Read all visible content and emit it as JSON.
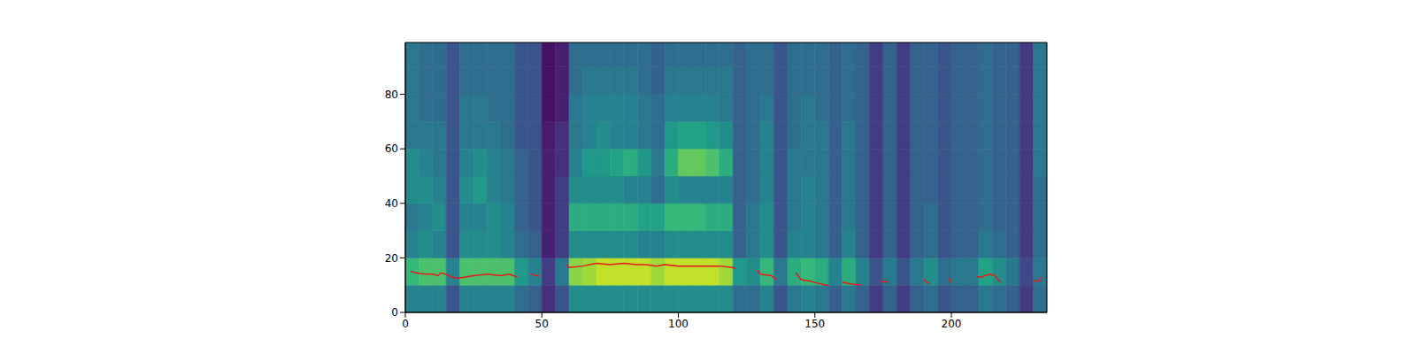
{
  "chart_data": {
    "type": "heatmap",
    "xlim": [
      0,
      235
    ],
    "ylim": [
      0,
      99
    ],
    "xticks": [
      0,
      50,
      100,
      150,
      200
    ],
    "yticks": [
      0,
      20,
      40,
      60,
      80
    ],
    "heatmap": {
      "color_range": [
        0,
        1
      ],
      "x_edges": [
        0,
        5,
        10,
        15,
        20,
        25,
        30,
        35,
        40,
        45,
        50,
        55,
        60,
        65,
        70,
        75,
        80,
        85,
        90,
        95,
        100,
        105,
        110,
        115,
        120,
        125,
        130,
        135,
        140,
        145,
        150,
        155,
        160,
        165,
        170,
        175,
        180,
        185,
        190,
        195,
        200,
        205,
        210,
        215,
        220,
        225,
        230,
        235
      ],
      "y_edges": [
        0,
        10,
        20,
        30,
        40,
        50,
        60,
        70,
        80,
        90,
        99
      ],
      "values": [
        [
          0.5,
          0.75,
          0.5,
          0.45,
          0.55,
          0.55,
          0.45,
          0.45,
          0.45,
          0.45
        ],
        [
          0.5,
          0.8,
          0.55,
          0.5,
          0.55,
          0.5,
          0.45,
          0.4,
          0.4,
          0.4
        ],
        [
          0.5,
          0.8,
          0.5,
          0.55,
          0.5,
          0.45,
          0.45,
          0.4,
          0.4,
          0.4
        ],
        [
          0.3,
          0.5,
          0.3,
          0.3,
          0.3,
          0.3,
          0.3,
          0.3,
          0.3,
          0.3
        ],
        [
          0.5,
          0.8,
          0.55,
          0.5,
          0.55,
          0.5,
          0.45,
          0.45,
          0.4,
          0.4
        ],
        [
          0.5,
          0.8,
          0.55,
          0.5,
          0.6,
          0.55,
          0.45,
          0.45,
          0.4,
          0.4
        ],
        [
          0.5,
          0.8,
          0.55,
          0.55,
          0.5,
          0.5,
          0.45,
          0.4,
          0.4,
          0.4
        ],
        [
          0.5,
          0.8,
          0.5,
          0.5,
          0.45,
          0.45,
          0.4,
          0.4,
          0.4,
          0.4
        ],
        [
          0.4,
          0.6,
          0.4,
          0.35,
          0.35,
          0.35,
          0.3,
          0.3,
          0.3,
          0.3
        ],
        [
          0.35,
          0.5,
          0.35,
          0.3,
          0.3,
          0.3,
          0.3,
          0.3,
          0.3,
          0.3
        ],
        [
          0.15,
          0.2,
          0.1,
          0.1,
          0.1,
          0.1,
          0.08,
          0.05,
          0.05,
          0.05
        ],
        [
          0.3,
          0.45,
          0.2,
          0.2,
          0.2,
          0.15,
          0.15,
          0.1,
          0.1,
          0.1
        ],
        [
          0.55,
          0.9,
          0.55,
          0.7,
          0.55,
          0.5,
          0.45,
          0.45,
          0.4,
          0.4
        ],
        [
          0.55,
          0.92,
          0.55,
          0.7,
          0.55,
          0.6,
          0.5,
          0.5,
          0.45,
          0.4
        ],
        [
          0.55,
          0.95,
          0.55,
          0.7,
          0.55,
          0.6,
          0.55,
          0.5,
          0.45,
          0.4
        ],
        [
          0.55,
          0.95,
          0.55,
          0.7,
          0.55,
          0.65,
          0.5,
          0.5,
          0.45,
          0.4
        ],
        [
          0.55,
          0.95,
          0.55,
          0.7,
          0.5,
          0.7,
          0.5,
          0.5,
          0.45,
          0.4
        ],
        [
          0.55,
          0.95,
          0.5,
          0.65,
          0.5,
          0.6,
          0.45,
          0.45,
          0.4,
          0.4
        ],
        [
          0.55,
          0.92,
          0.5,
          0.65,
          0.4,
          0.45,
          0.4,
          0.4,
          0.35,
          0.35
        ],
        [
          0.55,
          0.95,
          0.55,
          0.75,
          0.55,
          0.7,
          0.6,
          0.5,
          0.45,
          0.4
        ],
        [
          0.55,
          0.95,
          0.55,
          0.75,
          0.5,
          0.85,
          0.65,
          0.5,
          0.45,
          0.4
        ],
        [
          0.55,
          0.95,
          0.55,
          0.75,
          0.5,
          0.85,
          0.65,
          0.5,
          0.45,
          0.4
        ],
        [
          0.55,
          0.95,
          0.55,
          0.7,
          0.5,
          0.8,
          0.6,
          0.5,
          0.45,
          0.4
        ],
        [
          0.55,
          0.92,
          0.55,
          0.7,
          0.5,
          0.7,
          0.55,
          0.45,
          0.45,
          0.4
        ],
        [
          0.4,
          0.6,
          0.35,
          0.35,
          0.35,
          0.35,
          0.35,
          0.35,
          0.35,
          0.35
        ],
        [
          0.4,
          0.55,
          0.45,
          0.45,
          0.4,
          0.4,
          0.4,
          0.4,
          0.4,
          0.4
        ],
        [
          0.5,
          0.75,
          0.55,
          0.55,
          0.5,
          0.5,
          0.5,
          0.45,
          0.4,
          0.4
        ],
        [
          0.3,
          0.45,
          0.3,
          0.3,
          0.3,
          0.3,
          0.3,
          0.3,
          0.3,
          0.3
        ],
        [
          0.45,
          0.7,
          0.5,
          0.45,
          0.45,
          0.45,
          0.4,
          0.4,
          0.4,
          0.4
        ],
        [
          0.5,
          0.75,
          0.5,
          0.5,
          0.5,
          0.45,
          0.45,
          0.45,
          0.4,
          0.4
        ],
        [
          0.45,
          0.7,
          0.45,
          0.45,
          0.45,
          0.45,
          0.45,
          0.4,
          0.4,
          0.4
        ],
        [
          0.35,
          0.5,
          0.35,
          0.35,
          0.35,
          0.35,
          0.35,
          0.35,
          0.35,
          0.35
        ],
        [
          0.45,
          0.7,
          0.5,
          0.45,
          0.45,
          0.45,
          0.45,
          0.4,
          0.4,
          0.4
        ],
        [
          0.35,
          0.5,
          0.35,
          0.35,
          0.35,
          0.35,
          0.35,
          0.35,
          0.35,
          0.35
        ],
        [
          0.2,
          0.3,
          0.2,
          0.2,
          0.2,
          0.2,
          0.2,
          0.2,
          0.2,
          0.2
        ],
        [
          0.35,
          0.45,
          0.35,
          0.35,
          0.35,
          0.35,
          0.35,
          0.35,
          0.35,
          0.35
        ],
        [
          0.2,
          0.3,
          0.2,
          0.2,
          0.2,
          0.2,
          0.2,
          0.2,
          0.2,
          0.2
        ],
        [
          0.35,
          0.45,
          0.35,
          0.35,
          0.35,
          0.35,
          0.35,
          0.35,
          0.35,
          0.35
        ],
        [
          0.4,
          0.55,
          0.4,
          0.4,
          0.35,
          0.35,
          0.35,
          0.35,
          0.35,
          0.35
        ],
        [
          0.3,
          0.4,
          0.3,
          0.3,
          0.3,
          0.3,
          0.3,
          0.3,
          0.3,
          0.3
        ],
        [
          0.35,
          0.45,
          0.35,
          0.35,
          0.35,
          0.35,
          0.35,
          0.35,
          0.35,
          0.35
        ],
        [
          0.35,
          0.45,
          0.35,
          0.35,
          0.35,
          0.35,
          0.35,
          0.35,
          0.35,
          0.35
        ],
        [
          0.45,
          0.65,
          0.45,
          0.4,
          0.4,
          0.4,
          0.4,
          0.4,
          0.4,
          0.4
        ],
        [
          0.4,
          0.55,
          0.4,
          0.35,
          0.35,
          0.35,
          0.35,
          0.35,
          0.35,
          0.35
        ],
        [
          0.35,
          0.45,
          0.35,
          0.35,
          0.35,
          0.35,
          0.35,
          0.35,
          0.35,
          0.35
        ],
        [
          0.2,
          0.25,
          0.2,
          0.2,
          0.2,
          0.2,
          0.2,
          0.2,
          0.2,
          0.2
        ],
        [
          0.4,
          0.45,
          0.4,
          0.4,
          0.4,
          0.45,
          0.45,
          0.45,
          0.45,
          0.45
        ]
      ]
    },
    "series": [
      {
        "type": "line",
        "color": "#e41a1c",
        "x": [
          2,
          5,
          8,
          10,
          12,
          13,
          15,
          17,
          19,
          22,
          25,
          30,
          35,
          38,
          41,
          44,
          46,
          49,
          54,
          59,
          60,
          65,
          70,
          75,
          80,
          85,
          88,
          92,
          95,
          100,
          105,
          110,
          115,
          120,
          121,
          125,
          129,
          130,
          134,
          136,
          140,
          143,
          145,
          148,
          150,
          154,
          155,
          158,
          160,
          163,
          167,
          171,
          174,
          177,
          183,
          190,
          191,
          192,
          196,
          199,
          200,
          205,
          209,
          211,
          214,
          216,
          218,
          224,
          230,
          232,
          233
        ],
        "values": [
          15,
          14.3,
          14,
          14,
          13.5,
          14.5,
          14,
          13,
          12.5,
          13,
          13.5,
          14,
          13.5,
          14,
          13,
          null,
          14,
          13.3,
          null,
          17.5,
          16.5,
          17,
          18,
          17.5,
          18,
          17.5,
          17.5,
          17,
          17.5,
          17,
          17,
          17,
          17,
          16.5,
          16,
          null,
          15.5,
          14,
          13.5,
          12,
          null,
          14.5,
          12,
          11.5,
          11,
          10,
          10,
          null,
          11,
          10.5,
          10,
          null,
          11.5,
          11,
          null,
          12,
          11,
          10.5,
          null,
          12.5,
          11,
          null,
          13,
          13,
          14,
          13.5,
          11,
          null,
          11.5,
          11.5,
          13
        ]
      }
    ]
  }
}
